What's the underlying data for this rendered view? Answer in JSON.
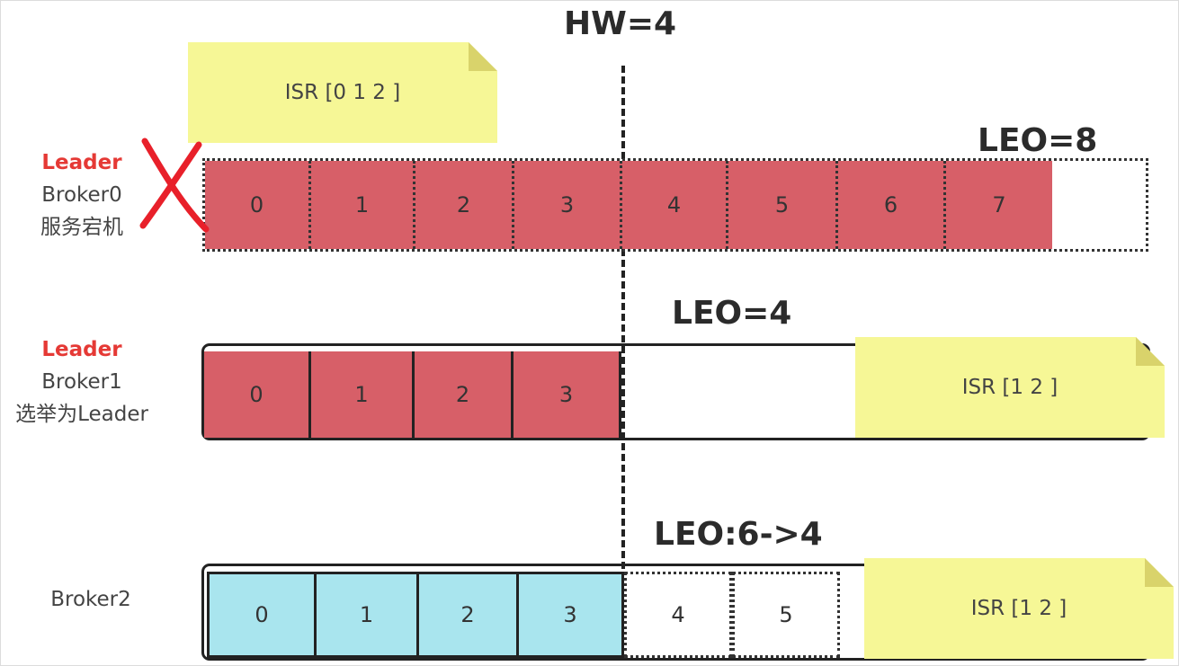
{
  "hw_label": "HW=4",
  "brokers": [
    {
      "role": "Leader",
      "name": "Broker0",
      "note": "服务宕机",
      "leo_label": "LEO=8",
      "isr_label": "ISR [0 1 2 ]",
      "offsets": [
        "0",
        "1",
        "2",
        "3",
        "4",
        "5",
        "6",
        "7"
      ],
      "failed_icon": "red-cross-icon",
      "cell_color": "#d75f68"
    },
    {
      "role": "Leader",
      "name": "Broker1",
      "note": "选举为Leader",
      "leo_label": "LEO=4",
      "isr_label": "ISR [1 2 ]",
      "offsets": [
        "0",
        "1",
        "2",
        "3"
      ],
      "cell_color": "#d75f68"
    },
    {
      "role": "",
      "name": "Broker2",
      "note": "",
      "leo_label": "LEO:6->4",
      "isr_label": "ISR [1 2 ]",
      "offsets": [
        "0",
        "1",
        "2",
        "3"
      ],
      "truncated_offsets": [
        "4",
        "5"
      ],
      "cell_color": "#a9e5ee"
    }
  ],
  "colors": {
    "leader_text": "#e53935",
    "note_fill": "#f6f796",
    "cross": "#e8202a"
  }
}
